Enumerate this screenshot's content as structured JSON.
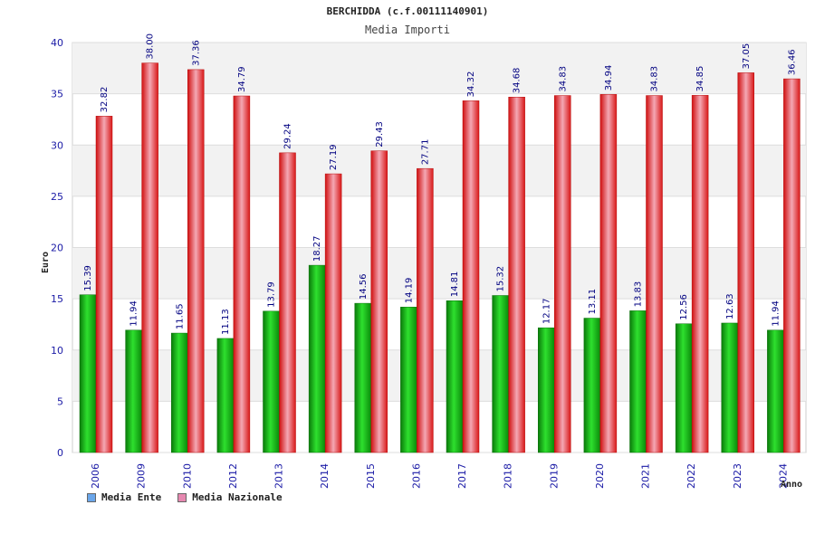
{
  "title": "BERCHIDDA (c.f.00111140901)",
  "subtitle": "Media Importi",
  "chart_data": {
    "type": "bar",
    "title": "BERCHIDDA (c.f.00111140901)",
    "subtitle": "Media Importi",
    "xlabel": "Anno",
    "ylabel": "Euro",
    "ylim": [
      0,
      40
    ],
    "yticks": [
      "0",
      "5",
      "10",
      "15",
      "20",
      "25",
      "30",
      "35",
      "40"
    ],
    "grid": true,
    "legend_position": "bottom-left",
    "categories": [
      "2006",
      "2009",
      "2010",
      "2012",
      "2013",
      "2014",
      "2015",
      "2016",
      "2017",
      "2018",
      "2019",
      "2020",
      "2021",
      "2022",
      "2023",
      "2024"
    ],
    "series": [
      {
        "name": "Media Ente",
        "color": "#10b010",
        "legend_color": "#6aa6ea",
        "values": [
          15.39,
          11.94,
          11.65,
          11.13,
          13.79,
          18.27,
          14.56,
          14.19,
          14.81,
          15.32,
          12.17,
          13.11,
          13.83,
          12.56,
          12.63,
          11.94
        ],
        "labels": [
          "15.39",
          "11.94",
          "11.65",
          "11.13",
          "13.79",
          "18.27",
          "14.56",
          "14.19",
          "14.81",
          "15.32",
          "12.17",
          "13.11",
          "13.83",
          "12.56",
          "12.63",
          "11.94"
        ]
      },
      {
        "name": "Media Nazionale",
        "color": "#e01818",
        "legend_color": "#e688b0",
        "values": [
          32.82,
          38.0,
          37.36,
          34.79,
          29.24,
          27.19,
          29.43,
          27.71,
          34.32,
          34.68,
          34.83,
          34.94,
          34.83,
          34.85,
          37.05,
          36.46
        ],
        "labels": [
          "32.82",
          "38.00",
          "37.36",
          "34.79",
          "29.24",
          "27.19",
          "29.43",
          "27.71",
          "34.32",
          "34.68",
          "34.83",
          "34.94",
          "34.83",
          "34.85",
          "37.05",
          "36.46"
        ]
      }
    ]
  }
}
